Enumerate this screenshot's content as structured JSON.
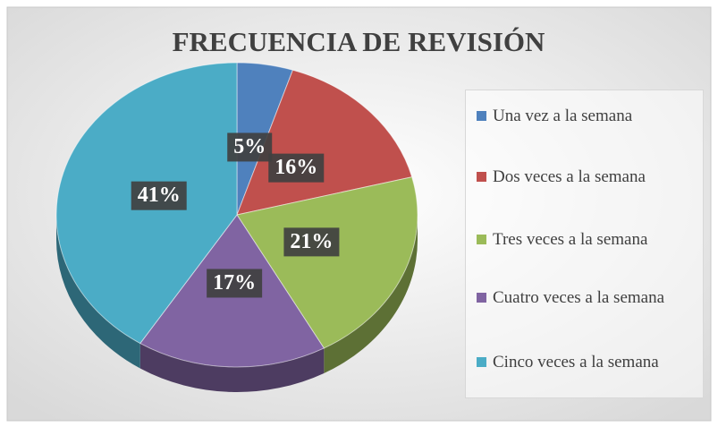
{
  "chart_data": {
    "type": "pie",
    "title": "FRECUENCIA DE REVISIÓN",
    "categories": [
      "Una vez a la semana",
      "Dos veces a la semana",
      "Tres veces a la semana",
      "Cuatro veces a la semana",
      "Cinco veces a la semana"
    ],
    "values": [
      5,
      16,
      21,
      17,
      41
    ],
    "value_labels": [
      "5%",
      "16%",
      "21%",
      "17%",
      "41%"
    ],
    "colors": [
      "#4f81bd",
      "#c0504d",
      "#9bbb59",
      "#8064a2",
      "#4bacc6"
    ],
    "legend": "right"
  }
}
